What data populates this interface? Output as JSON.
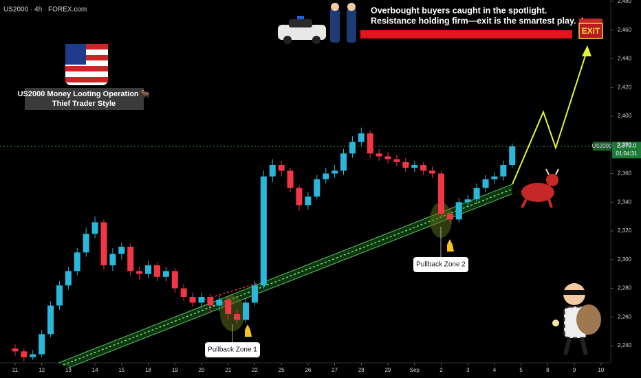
{
  "chart_data": {
    "type": "candlestick",
    "title": "US2000 · 4h · FOREX.com",
    "open": [
      2238,
      2236,
      2232,
      2234,
      2248,
      2268,
      2282,
      2292,
      2305,
      2318,
      2326,
      2296,
      2304,
      2309,
      2292,
      2290,
      2296,
      2288,
      2292,
      2280,
      2274,
      2270,
      2274,
      2268,
      2272,
      2262,
      2258,
      2270,
      2282,
      2358,
      2366,
      2362,
      2350,
      2338,
      2344,
      2356,
      2360,
      2362,
      2374,
      2382,
      2388,
      2374,
      2372,
      2370,
      2368,
      2364,
      2366,
      2362,
      2360,
      2332,
      2328,
      2340,
      2342,
      2350,
      2356,
      2358,
      2366
    ],
    "high": [
      2241,
      2238,
      2237,
      2251,
      2271,
      2285,
      2295,
      2308,
      2322,
      2330,
      2328,
      2308,
      2312,
      2311,
      2295,
      2299,
      2298,
      2295,
      2294,
      2283,
      2277,
      2277,
      2276,
      2275,
      2274,
      2265,
      2273,
      2285,
      2362,
      2370,
      2369,
      2364,
      2352,
      2347,
      2359,
      2364,
      2366,
      2377,
      2386,
      2392,
      2390,
      2377,
      2375,
      2373,
      2371,
      2369,
      2368,
      2365,
      2362,
      2336,
      2343,
      2345,
      2353,
      2359,
      2361,
      2369,
      2381
    ],
    "low": [
      2233,
      2229,
      2230,
      2232,
      2246,
      2265,
      2279,
      2289,
      2302,
      2315,
      2293,
      2292,
      2300,
      2289,
      2286,
      2287,
      2285,
      2285,
      2277,
      2271,
      2267,
      2266,
      2263,
      2264,
      2258,
      2255,
      2256,
      2268,
      2280,
      2354,
      2358,
      2347,
      2334,
      2335,
      2342,
      2353,
      2357,
      2359,
      2371,
      2379,
      2371,
      2369,
      2367,
      2365,
      2361,
      2361,
      2359,
      2357,
      2329,
      2325,
      2326,
      2337,
      2339,
      2347,
      2353,
      2355,
      2364
    ],
    "close": [
      2236,
      2232,
      2234,
      2248,
      2268,
      2282,
      2292,
      2305,
      2318,
      2326,
      2296,
      2304,
      2309,
      2292,
      2290,
      2296,
      2288,
      2292,
      2280,
      2274,
      2270,
      2274,
      2268,
      2272,
      2262,
      2258,
      2270,
      2282,
      2358,
      2366,
      2362,
      2350,
      2338,
      2344,
      2356,
      2360,
      2362,
      2374,
      2382,
      2388,
      2374,
      2372,
      2370,
      2368,
      2364,
      2366,
      2362,
      2360,
      2332,
      2328,
      2340,
      2342,
      2350,
      2356,
      2358,
      2366,
      2379
    ],
    "up_color": "#2bb7d9",
    "down_color": "#f23645",
    "ylim": [
      2228,
      2481
    ],
    "yticks": [
      {
        "value": 2240,
        "label": "2,240"
      },
      {
        "value": 2260,
        "label": "2,260"
      },
      {
        "value": 2280,
        "label": "2,280"
      },
      {
        "value": 2300,
        "label": "2,300"
      },
      {
        "value": 2320,
        "label": "2,320"
      },
      {
        "value": 2340,
        "label": "2,340"
      },
      {
        "value": 2360,
        "label": "2,360"
      },
      {
        "value": 2380,
        "label": "2,380"
      },
      {
        "value": 2400,
        "label": "2,400"
      },
      {
        "value": 2420,
        "label": "2,420"
      },
      {
        "value": 2440,
        "label": "2,440"
      },
      {
        "value": 2460,
        "label": "2,460"
      },
      {
        "value": 2480,
        "label": "2,480"
      }
    ],
    "xlim": [
      -1.7,
      67.1
    ],
    "xticks": [
      {
        "value": 0,
        "label": "11"
      },
      {
        "value": 3,
        "label": "12"
      },
      {
        "value": 6,
        "label": "13"
      },
      {
        "value": 9,
        "label": "14"
      },
      {
        "value": 12,
        "label": "15"
      },
      {
        "value": 15,
        "label": "18"
      },
      {
        "value": 18,
        "label": "19"
      },
      {
        "value": 21,
        "label": "20"
      },
      {
        "value": 24,
        "label": "21"
      },
      {
        "value": 27,
        "label": "22"
      },
      {
        "value": 30,
        "label": "25"
      },
      {
        "value": 33,
        "label": "26"
      },
      {
        "value": 36,
        "label": "27"
      },
      {
        "value": 39,
        "label": "28"
      },
      {
        "value": 42,
        "label": "29"
      },
      {
        "value": 45,
        "label": "Sep"
      },
      {
        "value": 48,
        "label": "2"
      },
      {
        "value": 51,
        "label": "3"
      },
      {
        "value": 54,
        "label": "4"
      },
      {
        "value": 57,
        "label": "5"
      },
      {
        "value": 60,
        "label": "8"
      },
      {
        "value": 63,
        "label": "9"
      },
      {
        "value": 66,
        "label": "10"
      }
    ],
    "last_price": {
      "value": 2379,
      "label": "2,379.0"
    },
    "symbol_tag": "US2000",
    "countdown": "01:04:31",
    "headline_1": "Overbought buyers caught in the spotlight.",
    "headline_2": "Resistance holding firm—exit is the smartest play. ⚠",
    "box_line_1": "US2000 Money Looting Operation 🐂",
    "box_line_2": "Thief Trader Style",
    "exit_sign": "EXIT",
    "zone_1": "Pullback Zone 1",
    "zone_2": "Pullback Zone 2"
  }
}
